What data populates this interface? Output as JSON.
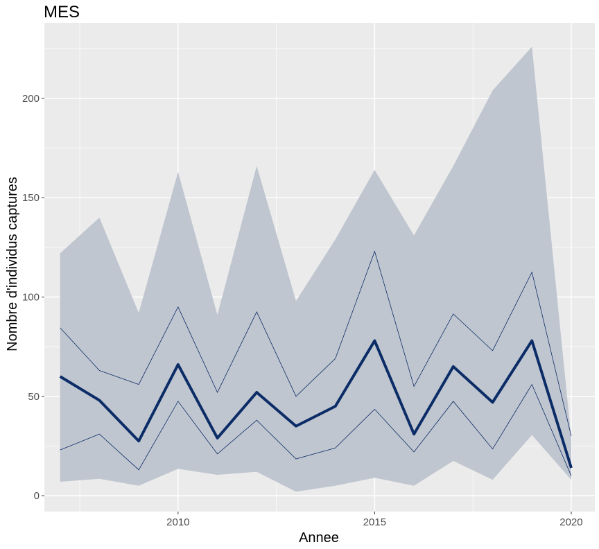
{
  "chart_data": {
    "type": "line",
    "title": "MES",
    "xlabel": "Annee",
    "ylabel": "Nombre d'individus captures",
    "xlim": [
      2006.6,
      2020.6
    ],
    "ylim": [
      -8,
      238
    ],
    "x_ticks": [
      2010,
      2015,
      2020
    ],
    "y_ticks": [
      0,
      50,
      100,
      150,
      200
    ],
    "x_tick_labels": [
      "2010",
      "2015",
      "2020"
    ],
    "y_tick_labels": [
      "0",
      "50",
      "100",
      "150",
      "200"
    ],
    "grid": true,
    "legend": "none",
    "x": [
      2007,
      2008,
      2009,
      2010,
      2011,
      2012,
      2013,
      2014,
      2015,
      2016,
      2017,
      2018,
      2019,
      2020
    ],
    "series": [
      {
        "role": "outer_band_upper",
        "values": [
          122,
          140,
          92,
          163,
          91,
          166,
          98,
          129,
          164,
          131,
          166,
          204,
          226,
          29
        ]
      },
      {
        "role": "outer_band_lower",
        "values": [
          7,
          8.5,
          5,
          13.5,
          10.5,
          12,
          2,
          5,
          9,
          5,
          17.5,
          8,
          30.5,
          8
        ]
      },
      {
        "role": "inner_upper",
        "values": [
          84.5,
          63,
          56,
          95,
          52,
          92.5,
          50,
          69,
          123,
          55,
          91.5,
          73,
          112.5,
          30
        ]
      },
      {
        "role": "inner_lower",
        "values": [
          23,
          31,
          13,
          47.5,
          21,
          38,
          18.5,
          24,
          43.5,
          22,
          47.5,
          23.5,
          56,
          10
        ]
      },
      {
        "role": "median",
        "values": [
          60,
          48,
          27.5,
          66,
          29,
          52,
          35,
          45,
          78,
          31,
          65,
          47,
          78,
          14
        ]
      }
    ],
    "colors": {
      "panel": "#EBEBEB",
      "grid": "#FFFFFF",
      "band": "#C0C6D0",
      "line": "#0B2C66"
    }
  }
}
